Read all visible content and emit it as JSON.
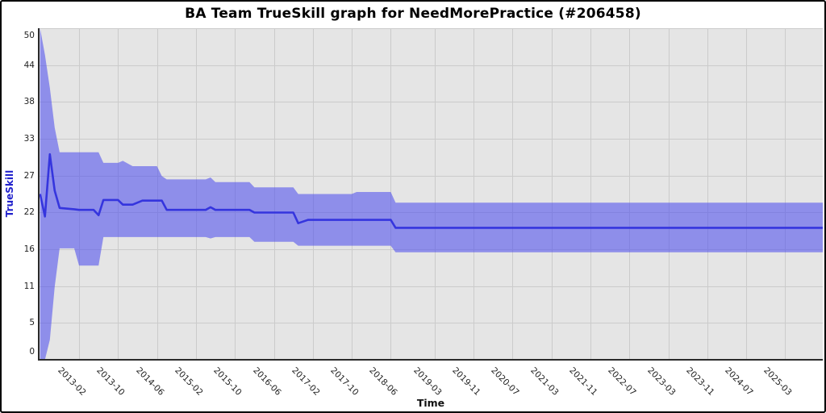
{
  "title": "BA Team TrueSkill graph for NeedMorePractice (#206458)",
  "y_axis": {
    "label": "TrueSkill",
    "tick_labels": [
      "50",
      "44",
      "38",
      "33",
      "27",
      "22",
      "16",
      "11",
      "5",
      "0"
    ],
    "min": 0,
    "max": 50
  },
  "x_axis": {
    "label": "Time",
    "tick_labels": [
      "2013-02",
      "2013-10",
      "2014-06",
      "2015-02",
      "2015-10",
      "2016-06",
      "2017-02",
      "2017-10",
      "2018-06",
      "2019-03",
      "2019-11",
      "2020-07",
      "2021-03",
      "2021-11",
      "2022-07",
      "2023-03",
      "2023-11",
      "2024-07",
      "2025-03"
    ]
  },
  "chart_data": {
    "type": "line",
    "title": "BA Team TrueSkill graph for NeedMorePractice (#206458)",
    "xlabel": "Time",
    "ylabel": "TrueSkill",
    "ylim": [
      0,
      50
    ],
    "x_range": [
      "2012-06",
      "2025-11"
    ],
    "grid": true,
    "legend": "none",
    "point_format": [
      "date",
      "skill",
      "band_low",
      "band_high"
    ],
    "series": [
      {
        "name": "TrueSkill",
        "points": [
          [
            "2012-06",
            25.0,
            0.0,
            50.0
          ],
          [
            "2012-07",
            21.6,
            0.0,
            46.0
          ],
          [
            "2012-08",
            31.0,
            3.0,
            41.0
          ],
          [
            "2012-09",
            25.5,
            11.0,
            35.0
          ],
          [
            "2012-10",
            22.9,
            16.8,
            31.3
          ],
          [
            "2013-01",
            22.7,
            16.8,
            31.3
          ],
          [
            "2013-02",
            22.6,
            14.2,
            31.3
          ],
          [
            "2013-05",
            22.6,
            14.2,
            31.3
          ],
          [
            "2013-06",
            21.8,
            14.2,
            31.3
          ],
          [
            "2013-07",
            24.1,
            18.5,
            29.7
          ],
          [
            "2013-10",
            24.1,
            18.5,
            29.7
          ],
          [
            "2013-11",
            23.4,
            18.5,
            30.0
          ],
          [
            "2014-01",
            23.4,
            18.5,
            29.2
          ],
          [
            "2014-03",
            24.0,
            18.5,
            29.2
          ],
          [
            "2014-06",
            24.0,
            18.5,
            29.2
          ],
          [
            "2014-07",
            24.0,
            18.5,
            27.7
          ],
          [
            "2014-08",
            22.6,
            18.5,
            27.2
          ],
          [
            "2015-04",
            22.6,
            18.5,
            27.2
          ],
          [
            "2015-05",
            23.0,
            18.3,
            27.5
          ],
          [
            "2015-06",
            22.6,
            18.5,
            26.8
          ],
          [
            "2016-01",
            22.6,
            18.5,
            26.8
          ],
          [
            "2016-02",
            22.2,
            17.8,
            26.0
          ],
          [
            "2016-10",
            22.2,
            17.8,
            26.0
          ],
          [
            "2016-11",
            20.6,
            17.2,
            25.0
          ],
          [
            "2017-01",
            21.1,
            17.2,
            25.0
          ],
          [
            "2017-10",
            21.1,
            17.2,
            25.0
          ],
          [
            "2017-11",
            21.1,
            17.2,
            25.3
          ],
          [
            "2018-06",
            21.1,
            17.2,
            25.3
          ],
          [
            "2018-07",
            19.9,
            16.2,
            23.7
          ],
          [
            "2025-11",
            19.9,
            16.2,
            23.7
          ]
        ]
      }
    ]
  },
  "colors": {
    "band": "#8b8bee",
    "band_base": "rgb(80,80,238)",
    "line": "#3535de",
    "plot_bg": "#e5e5e5",
    "grid": "#cbcbcb",
    "y_label": "#2222cc",
    "tick_text": "#222222",
    "border": "#000000"
  }
}
